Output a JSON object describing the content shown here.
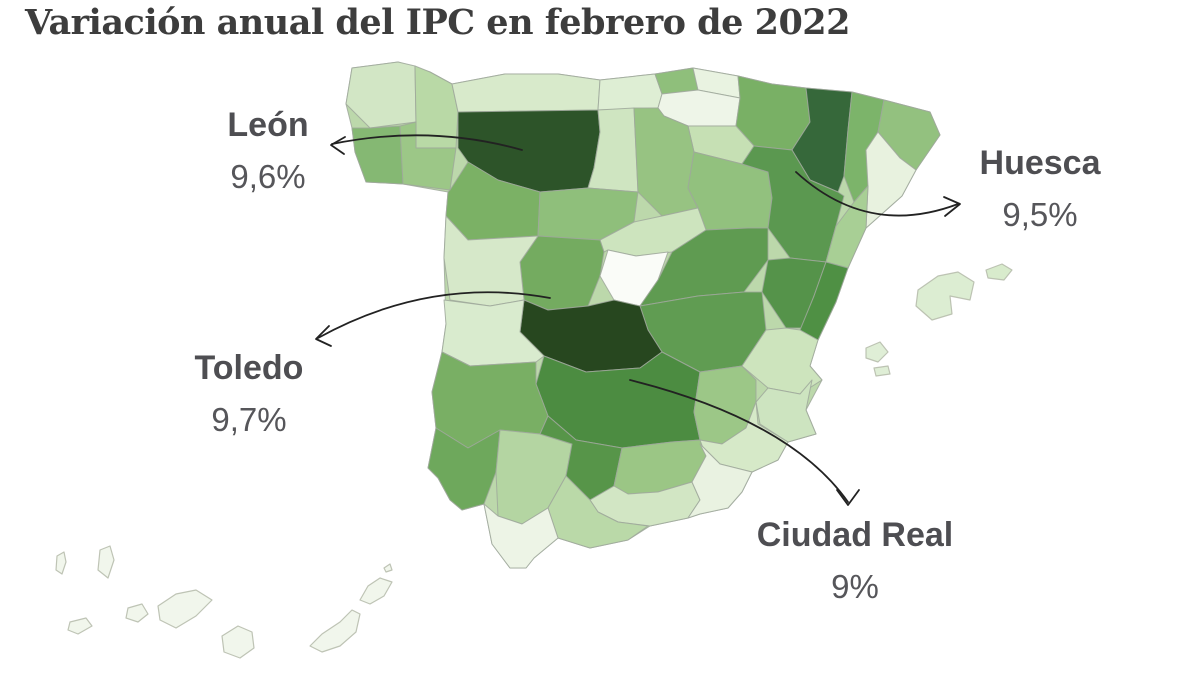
{
  "title": "Variación anual del IPC en febrero de 2022",
  "annotations": [
    {
      "id": "leon",
      "label": "León",
      "value": "9,6%"
    },
    {
      "id": "huesca",
      "label": "Huesca",
      "value": "9,5%"
    },
    {
      "id": "toledo",
      "label": "Toledo",
      "value": "9,7%"
    },
    {
      "id": "ciudad-real",
      "label": "Ciudad Real",
      "value": "9%"
    }
  ],
  "colors": {
    "background": "#ffffff",
    "title_text": "#3d3d3d",
    "annotation_label": "#4e4e52",
    "annotation_value": "#56565a",
    "arrow": "#222222",
    "province_border": "#9fa89b",
    "island_border": "#b4baa9",
    "base_fill": "#bcd8ab"
  },
  "map": {
    "region": "Spain provinces choropleth",
    "provinces": [
      {
        "id": "acoruna",
        "fill": "#d2e6c5"
      },
      {
        "id": "lugo",
        "fill": "#b9d9a6"
      },
      {
        "id": "pontevedra",
        "fill": "#85b873"
      },
      {
        "id": "ourense",
        "fill": "#9cc787"
      },
      {
        "id": "asturias",
        "fill": "#d8eacb"
      },
      {
        "id": "cantabria",
        "fill": "#deeed4"
      },
      {
        "id": "bizkaia",
        "fill": "#8fbf7b"
      },
      {
        "id": "gipuzkoa",
        "fill": "#e9f3e1"
      },
      {
        "id": "alava",
        "fill": "#eef5e8"
      },
      {
        "id": "navarra",
        "fill": "#79b065"
      },
      {
        "id": "larioja",
        "fill": "#c6e0b4"
      },
      {
        "id": "leon",
        "fill": "#2d5429"
      },
      {
        "id": "palencia",
        "fill": "#cfe5c1"
      },
      {
        "id": "burgos",
        "fill": "#97c382"
      },
      {
        "id": "zamora",
        "fill": "#7bb165"
      },
      {
        "id": "valladolid",
        "fill": "#8fbf7b"
      },
      {
        "id": "soria",
        "fill": "#92c17e"
      },
      {
        "id": "segovia",
        "fill": "#cde4be"
      },
      {
        "id": "avila",
        "fill": "#74ab60"
      },
      {
        "id": "salamanca",
        "fill": "#d6e8c9"
      },
      {
        "id": "huesca",
        "fill": "#36683a"
      },
      {
        "id": "zaragoza",
        "fill": "#5b9850"
      },
      {
        "id": "teruel",
        "fill": "#55934a"
      },
      {
        "id": "lleida",
        "fill": "#7cb46a"
      },
      {
        "id": "girona",
        "fill": "#93c17f"
      },
      {
        "id": "barcelona",
        "fill": "#e8f2df"
      },
      {
        "id": "tarragona",
        "fill": "#a8cf95"
      },
      {
        "id": "madrid",
        "fill": "#fafcf8"
      },
      {
        "id": "guadalajara",
        "fill": "#5f9b51"
      },
      {
        "id": "cuenca",
        "fill": "#609c52"
      },
      {
        "id": "toledo",
        "fill": "#27471f"
      },
      {
        "id": "ciudadreal",
        "fill": "#4c8c41"
      },
      {
        "id": "albacete",
        "fill": "#9cc787"
      },
      {
        "id": "caceres",
        "fill": "#d9ebce"
      },
      {
        "id": "badajoz",
        "fill": "#79af64"
      },
      {
        "id": "castellon",
        "fill": "#4f9044"
      },
      {
        "id": "valencia",
        "fill": "#cde4bd"
      },
      {
        "id": "alicante",
        "fill": "#cde4c0"
      },
      {
        "id": "murcia",
        "fill": "#d6e9c8"
      },
      {
        "id": "huelva",
        "fill": "#6ea85c"
      },
      {
        "id": "sevilla",
        "fill": "#b4d5a2"
      },
      {
        "id": "cordoba",
        "fill": "#579549"
      },
      {
        "id": "jaen",
        "fill": "#9bc685"
      },
      {
        "id": "granada",
        "fill": "#d2e6c4"
      },
      {
        "id": "almeria",
        "fill": "#e9f2e1"
      },
      {
        "id": "malaga",
        "fill": "#bad9a8"
      },
      {
        "id": "cadiz",
        "fill": "#edf4e6"
      }
    ],
    "islands": [
      {
        "id": "mallorca",
        "fill": "#dcedd2"
      },
      {
        "id": "menorca",
        "fill": "#d8ebcc"
      },
      {
        "id": "ibiza",
        "fill": "#dfeed6"
      },
      {
        "id": "formentera",
        "fill": "#dfeed6"
      },
      {
        "id": "islote",
        "fill": "#f1f6ec"
      },
      {
        "id": "lapalma",
        "fill": "#f1f6ec"
      },
      {
        "id": "elhierro",
        "fill": "#f1f6ec"
      },
      {
        "id": "lagomera",
        "fill": "#f1f6ec"
      },
      {
        "id": "tenerife",
        "fill": "#f1f6ec"
      },
      {
        "id": "grancanaria",
        "fill": "#f1f6ec"
      },
      {
        "id": "fuerteventura",
        "fill": "#f1f6ec"
      },
      {
        "id": "lanzarote",
        "fill": "#f1f6ec"
      },
      {
        "id": "lagraciosa",
        "fill": "#f1f6ec"
      }
    ]
  }
}
